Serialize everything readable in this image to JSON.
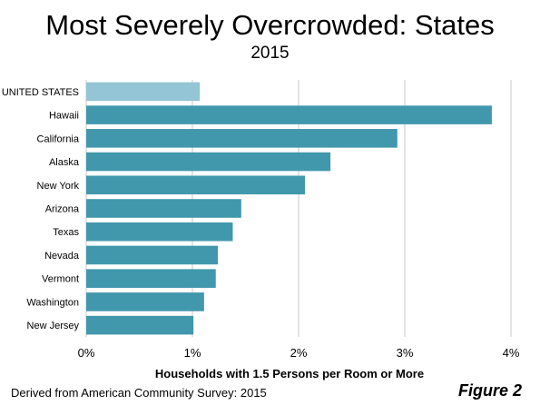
{
  "title": "Most Severely Overcrowded: States",
  "subtitle": "2015",
  "source": "Derived from American Community Survey: 2015",
  "figure_label": "Figure 2",
  "colors": {
    "highlight": "#93c5d6",
    "bar": "#4198ac",
    "grid": "#c8c8c8"
  },
  "chart_data": {
    "type": "bar",
    "orientation": "horizontal",
    "title": "Most Severely Overcrowded: States",
    "subtitle": "2015",
    "xlabel": "Households with 1.5 Persons per Room or More",
    "ylabel": "",
    "xlim": [
      0,
      4
    ],
    "x_ticks": [
      "0%",
      "1%",
      "2%",
      "3%",
      "4%"
    ],
    "grid": true,
    "categories": [
      "UNITED STATES",
      "Hawaii",
      "California",
      "Alaska",
      "New York",
      "Arizona",
      "Texas",
      "Nevada",
      "Vermont",
      "Washington",
      "New Jersey"
    ],
    "values": [
      1.07,
      3.82,
      2.93,
      2.3,
      2.06,
      1.46,
      1.38,
      1.24,
      1.22,
      1.11,
      1.01
    ],
    "highlight_index": 0
  }
}
